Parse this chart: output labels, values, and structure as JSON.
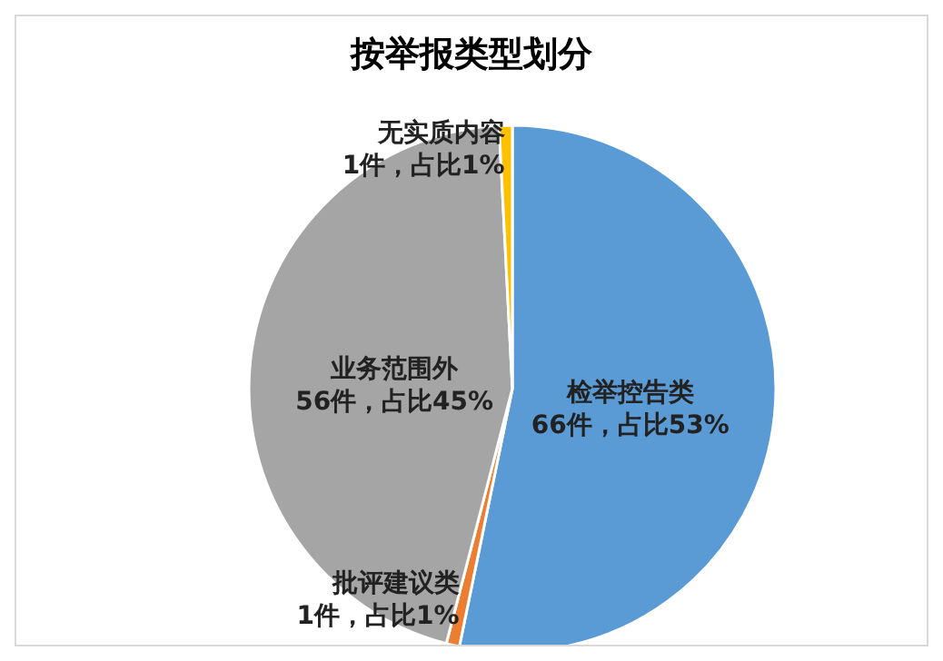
{
  "chart_data": {
    "type": "pie",
    "title": "按举报类型划分",
    "categories": [
      "检举控告类",
      "批评建议类",
      "业务范围外",
      "无实质内容"
    ],
    "values": [
      66,
      1,
      56,
      1
    ],
    "value_labels": [
      "66件，占比53%",
      "1件，占比1%",
      "56件，占比45%",
      "1件，占比1%"
    ],
    "colors": [
      "#5b9bd5",
      "#ed7d31",
      "#a5a5a5",
      "#ffc000"
    ],
    "legend": false
  }
}
